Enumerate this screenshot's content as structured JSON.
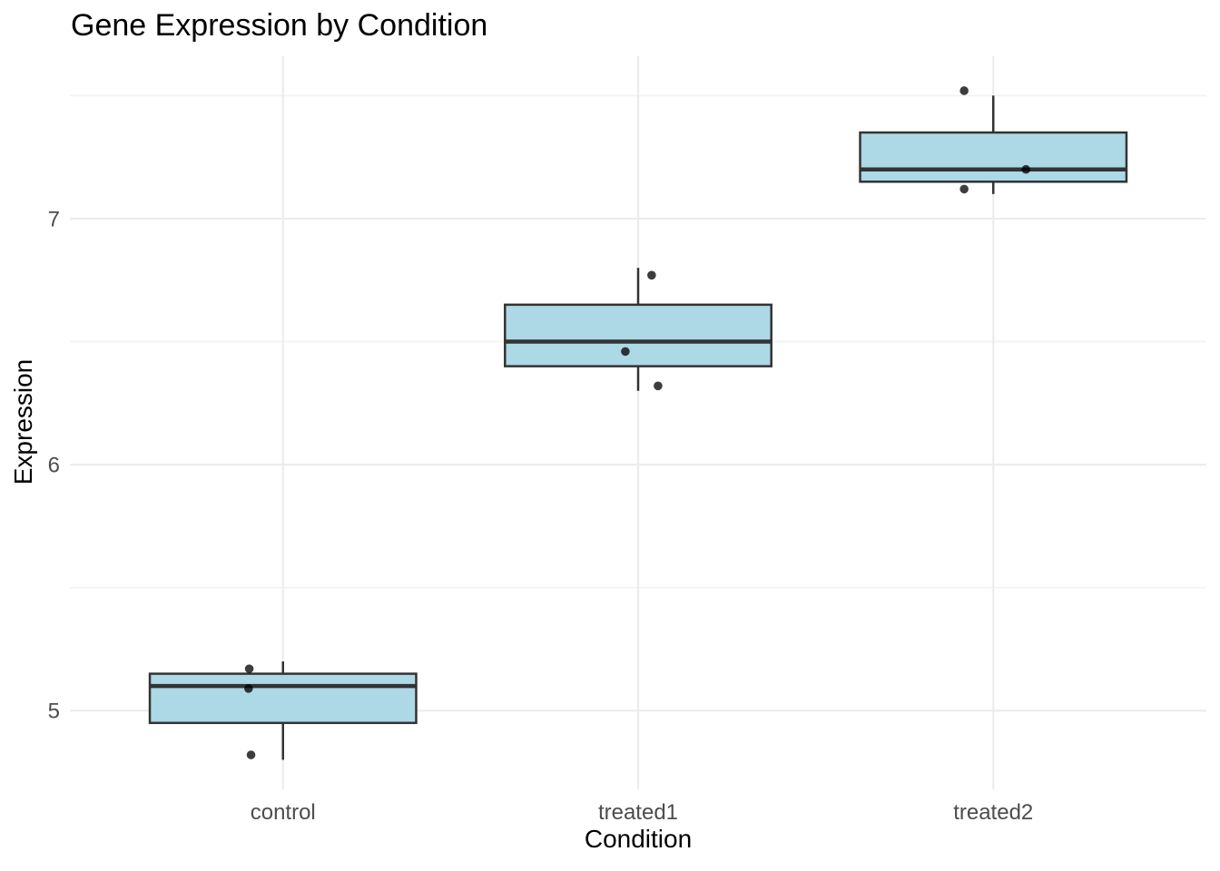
{
  "chart_data": {
    "type": "boxplot",
    "title": "Gene Expression by Condition",
    "xlabel": "Condition",
    "ylabel": "Expression",
    "categories": [
      "control",
      "treated1",
      "treated2"
    ],
    "yticks": [
      5,
      6,
      7
    ],
    "yticks_minor": [
      5.5,
      6.5,
      7.5
    ],
    "ylim": [
      4.68,
      7.66
    ],
    "grid": "horizontal major + minor lines, vertical major line at each category",
    "legend": "none",
    "box_width_fraction": 0.75,
    "series": [
      {
        "name": "control",
        "values": [
          4.8,
          5.1,
          5.2
        ],
        "box": {
          "whisker_low": 4.8,
          "q1": 4.95,
          "median": 5.1,
          "q3": 5.15,
          "whisker_high": 5.2
        },
        "jitter_points": [
          {
            "dx": -0.095,
            "y": 5.17
          },
          {
            "dx": -0.097,
            "y": 5.09
          },
          {
            "dx": -0.09,
            "y": 4.82
          }
        ]
      },
      {
        "name": "treated1",
        "values": [
          6.3,
          6.5,
          6.8
        ],
        "box": {
          "whisker_low": 6.3,
          "q1": 6.4,
          "median": 6.5,
          "q3": 6.65,
          "whisker_high": 6.8
        },
        "jitter_points": [
          {
            "dx": 0.038,
            "y": 6.77
          },
          {
            "dx": -0.036,
            "y": 6.46
          },
          {
            "dx": 0.056,
            "y": 6.32
          }
        ]
      },
      {
        "name": "treated2",
        "values": [
          7.1,
          7.2,
          7.5
        ],
        "box": {
          "whisker_low": 7.1,
          "q1": 7.15,
          "median": 7.2,
          "q3": 7.35,
          "whisker_high": 7.5
        },
        "jitter_points": [
          {
            "dx": -0.082,
            "y": 7.52
          },
          {
            "dx": 0.092,
            "y": 7.2
          },
          {
            "dx": -0.082,
            "y": 7.12
          }
        ]
      }
    ],
    "colors": {
      "background": "#FFFFFF",
      "box_fill": "#ADD8E6",
      "box_stroke": "#333333",
      "median_stroke": "#333333",
      "point_fill": "#000000",
      "point_opacity": 0.76,
      "grid_major": "#EBEBEB",
      "grid_minor": "#F2F2F2",
      "tick_label": "#4D4D4D",
      "axis_title": "#000000",
      "title": "#000000"
    }
  }
}
